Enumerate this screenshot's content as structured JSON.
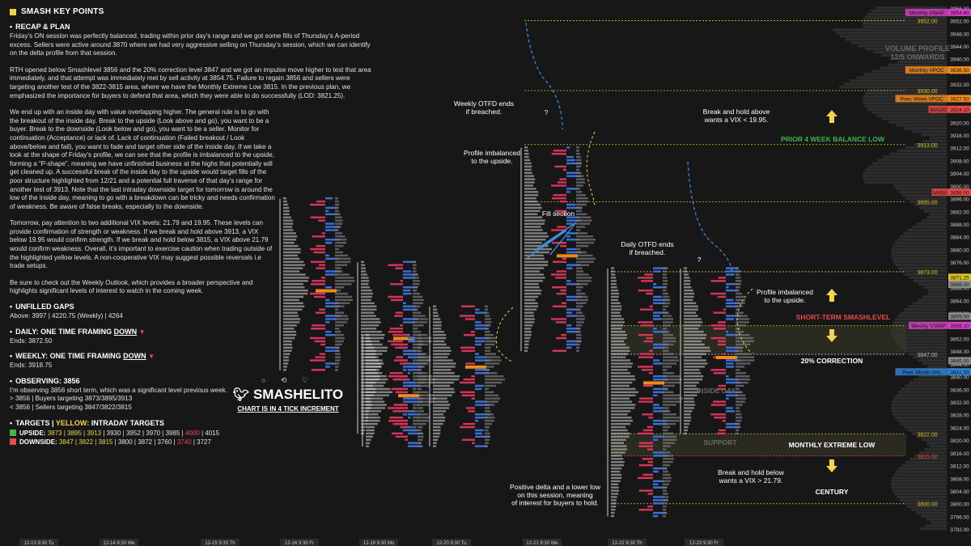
{
  "title": "SMASH KEY POINTS",
  "recap": {
    "heading": "RECAP & PLAN",
    "p1": "Friday’s ON session was perfectly balanced, trading within prior day’s range and we got some fills of Thursday’s A-period excess. Sellers were active around 3870 where we had very aggressive selling on Thursday’s session, which we can identify on the delta profile from that session.",
    "p2": "RTH opened below Smashlevel 3856 and the 20% correction level 3847 and we got an impulse move higher to test that area immediately, and that attempt was immediately met by sell activity at 3854.75. Failure to regain 3856 and sellers were targeting another test of the 3822-3815 area, where we have the Monthly Extreme Low 3815. In the previous plan, we emphasized the importance for buyers to defend that area, which they were able to do successfully (LOD: 3821.25).",
    "p3": "We end up with an inside day with value overlapping higher. The general rule is to go with the breakout of the inside day. Break to the upside (Look above and go), you want to be a buyer. Break to the downside (Look below and go), you want to be a seller. Monitor for continuation (Acceptance) or lack of. Lack of continuation (Failed breakout / Look above/below and fail), you want to fade and target other side of the inside day. If we take a look at the shape of Friday’s profile, we can see that the profile is imbalanced to the upside, forming a “P-shape”, meaning we have unfinished business at the highs that potentially will get cleaned up. A successful break of the inside day to the upside would target fills of the poor structure highlighted from 12/21 and a potential full traverse of that day’s range for another test of 3913. Note that the last intraday downside target for tomorrow is around the low of the inside day, meaning to go with a breakdown can be tricky and needs confirmation of weakness. Be aware of false breaks, especially to the downside.",
    "p4": "Tomorrow, pay attention to two additional VIX levels: 21.79 and 19.95. These levels can provide confirmation of strength or weakness. If we break and hold above 3913, a VIX below 19.95 would confirm strength. If we break and hold below 3815, a VIX above 21.79 would confirm weakness. Overall, it’s important to exercise caution when trading outside of the highlighted yellow levels. A non-cooperative VIX may suggest possible reversals i.e trade setups.",
    "p5": "Be sure to check out the Weekly Outlook, which provides a broader perspective and highlights significant levels of interest to watch in the coming week."
  },
  "gaps": {
    "heading": "UNFILLED GAPS",
    "text": "Above: 3997 | 4220.75 (Weekly) | 4264"
  },
  "daily": {
    "heading_a": "DAILY: ONE TIME FRAMING ",
    "heading_b": "DOWN",
    "text": "Ends: 3872.50"
  },
  "weekly": {
    "heading_a": "WEEKLY: ONE TIME FRAMING ",
    "heading_b": "DOWN",
    "text": "Ends: 3918.75"
  },
  "observing": {
    "heading": "OBSERVING: 3856",
    "l1": "I’m observing 3856 short term, which was a significant level previous week.",
    "l2": "> 3856 | Buyers targeting 3873/3895/3913",
    "l3": "< 3856 | Sellers targeting 3847/3822/3815"
  },
  "targets": {
    "heading_a": "TARGETS | ",
    "heading_b": "YELLOW:",
    "heading_c": " INTRADAY TARGETS",
    "up_label": "UPSIDE:",
    "up_yellow": "3873 | 3895 | 3913",
    "up_white": " | 3930 | 3952 | 3970 | 3985 | ",
    "up_red": "4000",
    "up_white2": " | 4015",
    "down_label": "DOWNSIDE:",
    "down_yellow": "3847 | 3822 | 3815",
    "down_white": " | 3800 | 3872 | 3760 | ",
    "down_red": "3740",
    "down_white2": " | 3727"
  },
  "brand": {
    "icons": "○ ⟲ ♡",
    "name": "SMASHELITO",
    "sub": "CHART IS IN 4 TICK INCREMENT"
  },
  "colors": {
    "accent_yellow": "#f2d64a",
    "red": "#e84a4a",
    "green": "#3fb54a",
    "magenta": "#d63fc6",
    "orange": "#f08a1c",
    "blue_profile": "#3d6fd9",
    "red_profile": "#d6355a"
  },
  "chart_data": {
    "type": "market-profile",
    "price_axis": {
      "ylim": [
        3790,
        3958
      ],
      "ticks": [
        3792,
        3796,
        3800,
        3804,
        3808,
        3812,
        3816,
        3820,
        3824,
        3828,
        3832,
        3836,
        3840,
        3844,
        3848,
        3852,
        3856,
        3860,
        3864,
        3868,
        3872,
        3876,
        3880,
        3884,
        3888,
        3892,
        3896,
        3900,
        3904,
        3908,
        3912,
        3916,
        3920,
        3924,
        3928,
        3932,
        3936,
        3940,
        3944,
        3948,
        3952,
        3956
      ]
    },
    "time_axis": [
      "12-13  9:30 Tu",
      "12-14  9:30 We",
      "12-15  9:30 Th",
      "12-16  9:30 Fr",
      "12-19  9:30 Mo",
      "12-20  9:30 Tu",
      "12-21  9:30 We",
      "12-22  9:30 Th",
      "12-23  9:30 Fr"
    ],
    "levels": [
      {
        "price": 3952.0,
        "label": "3952.00",
        "color": "yellow"
      },
      {
        "price": 3930.0,
        "label": "3930.00",
        "color": "yellow"
      },
      {
        "price": 3913.0,
        "label": "3913.00",
        "color": "yellow"
      },
      {
        "price": 3895.0,
        "label": "3895.00",
        "color": "yellow"
      },
      {
        "price": 3873.0,
        "label": "3873.00",
        "color": "yellow"
      },
      {
        "price": 3856.0,
        "label": "3856.00",
        "color": "yellow"
      },
      {
        "price": 3847.0,
        "label": "3847.00",
        "color": "white"
      },
      {
        "price": 3822.0,
        "label": "3822.00",
        "color": "yellow"
      },
      {
        "price": 3815.0,
        "label": "3815.00",
        "color": "red"
      },
      {
        "price": 3800.0,
        "label": "3800.00",
        "color": "yellow"
      }
    ],
    "tags": [
      {
        "text": "Monthly VWAP",
        "value": "3954.60",
        "price": 3954.6,
        "color": "magenta"
      },
      {
        "text": "Monthly VPOC",
        "value": "3936.50",
        "price": 3936.5,
        "color": "orange"
      },
      {
        "text": "Prev. Week VPOC",
        "value": "3927.50",
        "price": 3927.5,
        "color": "orange"
      },
      {
        "text": "MA100",
        "value": "3924.10",
        "price": 3924.1,
        "color": "red"
      },
      {
        "text": "MA50",
        "value": "3898.00",
        "price": 3898.0,
        "color": "red"
      },
      {
        "text": "",
        "value": "3871.25",
        "price": 3871.25,
        "color": "yellow"
      },
      {
        "text": "",
        "value": "3869.00",
        "price": 3869.0,
        "color": "grey"
      },
      {
        "text": "",
        "value": "3859.00",
        "price": 3859.0,
        "color": "grey"
      },
      {
        "text": "Weekly VWAP",
        "value": "3856.10",
        "price": 3856.1,
        "color": "magenta"
      },
      {
        "text": "",
        "value": "3845.00",
        "price": 3845.0,
        "color": "grey"
      },
      {
        "text": "Prev. Month VAL",
        "value": "3841.50",
        "price": 3841.5,
        "color": "blue"
      }
    ],
    "zones": [
      {
        "from": 3847,
        "to": 3856,
        "label": "SHORT-TERM SMASHLEVEL"
      },
      {
        "from": 3815,
        "to": 3822,
        "label": "SUPPORT"
      }
    ],
    "level_labels": [
      "PRIOR 4 WEEK BALANCE LOW",
      "SHORT-TERM SMASHLEVEL",
      "20% CORRECTION",
      "MONTHLY EXTREME LOW",
      "CENTURY"
    ],
    "annotations": [
      "Weekly OTFD ends\nif breached.",
      "Profile imbalanced\nto the upside.",
      "Fill section",
      "Daily OTFD ends\nif breached.",
      "Profile imbalanced\nto the upside.",
      "Break and hold above\nwants a VIX < 19.95.",
      "Break and hold below\nwants a VIX > 21.79.",
      "Positive delta and a lower low\non this session, meaning\nof interest for buyers to hold.",
      "INSIDE DAY",
      "VOLUME PROFILE\n12/5 ONWARDS",
      "?",
      "?"
    ],
    "profiles": [
      {
        "date": "12-15",
        "low": 3842,
        "high": 3896
      },
      {
        "date": "12-16",
        "low": 3822,
        "high": 3876
      },
      {
        "date": "12-19",
        "low": 3818,
        "high": 3853
      },
      {
        "date": "12-20",
        "low": 3818,
        "high": 3862
      },
      {
        "date": "12-21",
        "low": 3848,
        "high": 3912
      },
      {
        "date": "12-22",
        "low": 3796,
        "high": 3874
      },
      {
        "date": "12-23",
        "low": 3822,
        "high": 3874
      }
    ]
  }
}
